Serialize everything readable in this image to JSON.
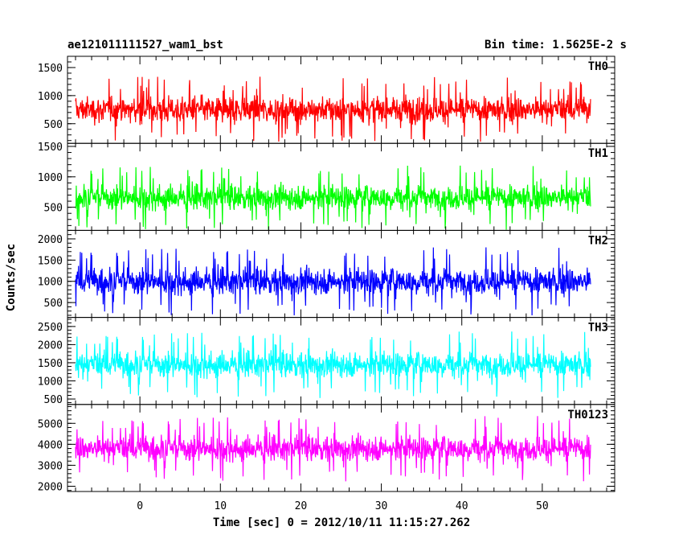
{
  "header": {
    "left_title": "ae121011111527_wam1_bst",
    "right_title": "Bin time: 1.5625E-2 s"
  },
  "chart_data": {
    "type": "line",
    "xlabel": "Time [sec] 0 = 2012/10/11 11:15:27.262",
    "ylabel": "Counts/sec",
    "xlim": [
      -9,
      59
    ],
    "xticks_major": [
      0,
      10,
      20,
      30,
      40,
      50
    ],
    "x_data_range": [
      -8,
      56
    ],
    "grid": false,
    "series": [
      {
        "name": "TH0",
        "color": "#ff0000",
        "ylim": [
          150,
          1700
        ],
        "yticks": [
          500,
          1000,
          1500
        ],
        "mean": 750,
        "spread": 210,
        "min": 180,
        "max": 1700
      },
      {
        "name": "TH1",
        "color": "#00ff00",
        "ylim": [
          120,
          1550
        ],
        "yticks": [
          500,
          1000,
          1500
        ],
        "mean": 660,
        "spread": 190,
        "min": 130,
        "max": 1550
      },
      {
        "name": "TH2",
        "color": "#0000ff",
        "ylim": [
          150,
          2200
        ],
        "yticks": [
          500,
          1000,
          1500,
          2000
        ],
        "mean": 1000,
        "spread": 290,
        "min": 200,
        "max": 2200
      },
      {
        "name": "TH3",
        "color": "#00ffff",
        "ylim": [
          350,
          2750
        ],
        "yticks": [
          500,
          1000,
          1500,
          2000,
          2500
        ],
        "mean": 1450,
        "spread": 330,
        "min": 380,
        "max": 2750
      },
      {
        "name": "TH0123",
        "color": "#ff00ff",
        "ylim": [
          1750,
          5900
        ],
        "yticks": [
          2000,
          3000,
          4000,
          5000
        ],
        "mean": 3800,
        "spread": 560,
        "min": 1800,
        "max": 5900
      }
    ]
  }
}
